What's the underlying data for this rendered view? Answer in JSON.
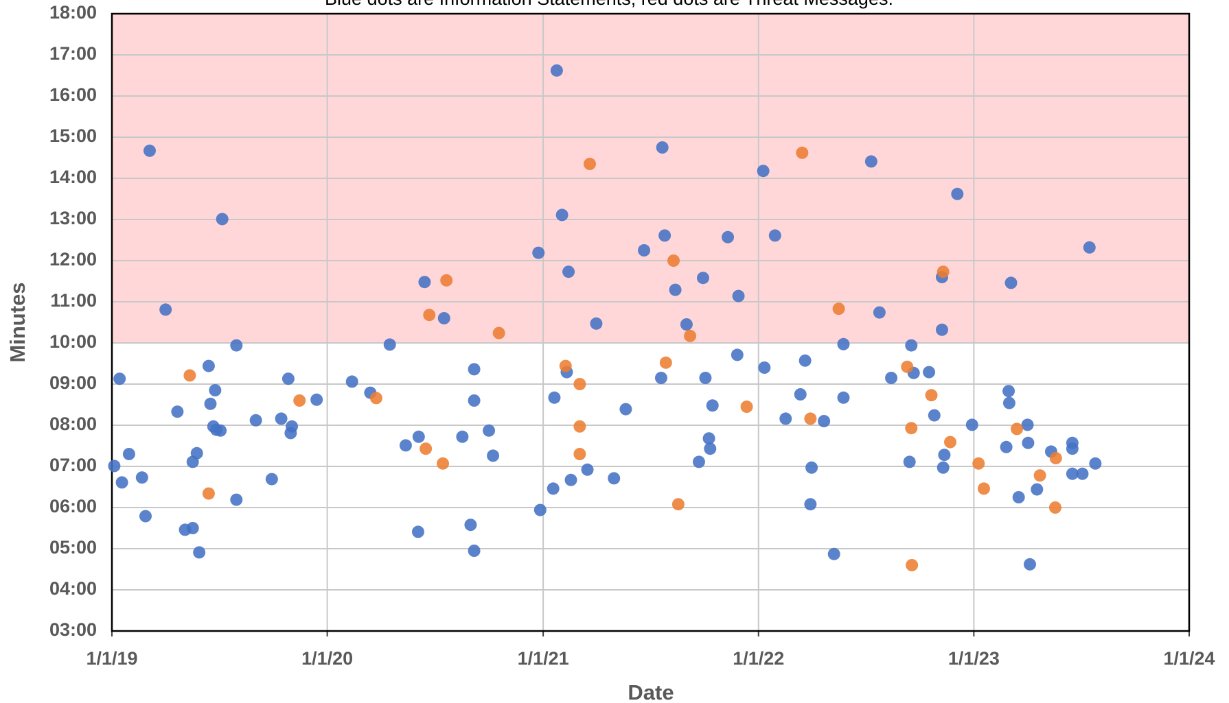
{
  "chart_data": {
    "type": "scatter",
    "title": "Blue dots are Information Statements, red dots are Threat Messages.",
    "x_label": "Date",
    "y_label": "Minutes",
    "xlim": [
      "2019-01-01",
      "2024-01-01"
    ],
    "xticks": [
      {
        "value": "2019-01-01",
        "label": "1/1/19"
      },
      {
        "value": "2020-01-01",
        "label": "1/1/20"
      },
      {
        "value": "2021-01-01",
        "label": "1/1/21"
      },
      {
        "value": "2022-01-01",
        "label": "1/1/22"
      },
      {
        "value": "2023-01-01",
        "label": "1/1/23"
      },
      {
        "value": "2024-01-01",
        "label": "1/1/24"
      }
    ],
    "ylim": [
      3,
      18
    ],
    "yticks": [
      {
        "value": 3,
        "label": "03:00"
      },
      {
        "value": 4,
        "label": "04:00"
      },
      {
        "value": 5,
        "label": "05:00"
      },
      {
        "value": 6,
        "label": "06:00"
      },
      {
        "value": 7,
        "label": "07:00"
      },
      {
        "value": 8,
        "label": "08:00"
      },
      {
        "value": 9,
        "label": "09:00"
      },
      {
        "value": 10,
        "label": "10:00"
      },
      {
        "value": 11,
        "label": "11:00"
      },
      {
        "value": 12,
        "label": "12:00"
      },
      {
        "value": 13,
        "label": "13:00"
      },
      {
        "value": 14,
        "label": "14:00"
      },
      {
        "value": 15,
        "label": "15:00"
      },
      {
        "value": 16,
        "label": "16:00"
      },
      {
        "value": 17,
        "label": "17:00"
      },
      {
        "value": 18,
        "label": "18:00"
      }
    ],
    "grid": true,
    "band": {
      "ylim": [
        10,
        18
      ],
      "color": "#ffd7d9"
    },
    "series": [
      {
        "color": "#4472c4",
        "x": [
          "2019-01-05",
          "2019-01-14",
          "2019-01-18",
          "2019-01-30",
          "2019-02-21",
          "2019-02-27",
          "2019-03-06",
          "2019-04-02",
          "2019-04-22",
          "2019-05-05",
          "2019-05-18",
          "2019-05-18",
          "2019-05-25",
          "2019-05-29",
          "2019-06-14",
          "2019-06-17",
          "2019-06-25",
          "2019-06-22",
          "2019-06-27",
          "2019-07-04",
          "2019-07-07",
          "2019-07-31",
          "2019-07-31",
          "2019-09-02",
          "2019-09-29",
          "2019-10-15",
          "2019-10-27",
          "2019-11-02",
          "2019-10-31",
          "2019-12-14",
          "2020-02-12",
          "2020-03-14",
          "2020-04-16",
          "2020-05-13",
          "2020-06-04",
          "2020-06-03",
          "2020-06-14",
          "2020-07-17",
          "2020-08-17",
          "2020-08-31",
          "2020-09-06",
          "2020-09-06",
          "2020-09-06",
          "2020-10-01",
          "2020-10-08",
          "2020-12-24",
          "2020-12-27",
          "2021-01-20",
          "2021-01-18",
          "2021-01-24",
          "2021-02-02",
          "2021-02-10",
          "2021-02-13",
          "2021-02-17",
          "2021-03-17",
          "2021-04-01",
          "2021-05-01",
          "2021-05-21",
          "2021-06-21",
          "2021-07-22",
          "2021-07-26",
          "2021-07-20",
          "2021-08-13",
          "2021-09-01",
          "2021-09-22",
          "2021-09-29",
          "2021-10-03",
          "2021-10-09",
          "2021-10-11",
          "2021-10-15",
          "2021-11-10",
          "2021-11-28",
          "2021-11-26",
          "2022-01-09",
          "2022-01-11",
          "2022-01-29",
          "2022-02-16",
          "2022-03-13",
          "2022-03-21",
          "2022-04-01",
          "2022-03-30",
          "2022-04-22",
          "2022-05-09",
          "2022-05-25",
          "2022-05-25",
          "2022-07-11",
          "2022-07-25",
          "2022-08-14",
          "2022-09-17",
          "2022-09-21",
          "2022-09-14",
          "2022-10-17",
          "2022-10-26",
          "2022-11-08",
          "2022-11-08",
          "2022-11-12",
          "2022-11-10",
          "2022-12-04",
          "2022-12-29",
          "2023-03-01",
          "2023-03-02",
          "2023-03-05",
          "2023-02-25",
          "2023-03-18",
          "2023-04-02",
          "2023-04-03",
          "2023-04-06",
          "2023-04-18",
          "2023-05-12",
          "2023-06-17",
          "2023-06-17",
          "2023-06-17",
          "2023-07-04",
          "2023-07-16",
          "2023-07-26"
        ],
        "values": [
          7.01,
          9.13,
          6.61,
          7.3,
          6.73,
          5.79,
          14.67,
          10.81,
          8.33,
          5.46,
          5.5,
          7.11,
          7.32,
          4.91,
          9.44,
          8.52,
          8.85,
          7.97,
          7.89,
          7.87,
          13.01,
          9.94,
          6.19,
          8.12,
          6.69,
          8.16,
          9.13,
          7.97,
          7.81,
          8.62,
          9.06,
          8.79,
          9.96,
          7.51,
          7.72,
          5.41,
          11.48,
          10.6,
          7.72,
          5.58,
          9.36,
          8.6,
          4.95,
          7.87,
          7.26,
          12.19,
          5.94,
          8.67,
          6.46,
          16.62,
          13.11,
          9.29,
          11.73,
          6.67,
          6.92,
          10.47,
          6.71,
          8.39,
          12.25,
          14.75,
          12.61,
          9.15,
          11.29,
          10.45,
          7.11,
          11.58,
          9.15,
          7.68,
          7.43,
          8.48,
          12.57,
          11.14,
          9.71,
          14.18,
          9.4,
          12.61,
          8.16,
          8.75,
          9.57,
          6.97,
          6.08,
          8.1,
          4.87,
          9.97,
          8.67,
          14.41,
          10.74,
          9.15,
          9.94,
          9.27,
          7.11,
          9.29,
          8.24,
          11.6,
          10.32,
          7.28,
          6.97,
          13.62,
          8.01,
          8.83,
          8.54,
          11.46,
          7.47,
          6.25,
          8.01,
          7.57,
          4.62,
          6.44,
          7.36,
          7.57,
          7.43,
          6.82,
          6.82,
          12.32,
          7.07
        ]
      },
      {
        "color": "#ed7d31",
        "x": [
          "2019-05-13",
          "2019-06-14",
          "2019-11-15",
          "2020-03-24",
          "2020-06-16",
          "2020-06-22",
          "2020-07-15",
          "2020-07-21",
          "2020-10-18",
          "2021-02-08",
          "2021-03-04",
          "2021-03-04",
          "2021-03-04",
          "2021-03-21",
          "2021-07-28",
          "2021-08-10",
          "2021-08-18",
          "2021-09-07",
          "2021-12-12",
          "2022-03-16",
          "2022-03-30",
          "2022-05-17",
          "2022-09-10",
          "2022-09-17",
          "2022-09-18",
          "2022-10-21",
          "2022-11-10",
          "2022-11-22",
          "2023-01-09",
          "2023-01-18",
          "2023-03-15",
          "2023-04-23",
          "2023-05-20",
          "2023-05-19"
        ],
        "values": [
          9.21,
          6.34,
          8.6,
          8.66,
          7.43,
          10.68,
          7.07,
          11.52,
          10.24,
          9.44,
          9.0,
          7.97,
          7.3,
          14.35,
          9.52,
          12.0,
          6.08,
          10.17,
          8.45,
          14.62,
          8.16,
          10.83,
          9.42,
          7.93,
          4.6,
          8.73,
          11.73,
          7.59,
          7.07,
          6.46,
          7.91,
          6.78,
          7.2,
          6.0
        ]
      }
    ]
  }
}
